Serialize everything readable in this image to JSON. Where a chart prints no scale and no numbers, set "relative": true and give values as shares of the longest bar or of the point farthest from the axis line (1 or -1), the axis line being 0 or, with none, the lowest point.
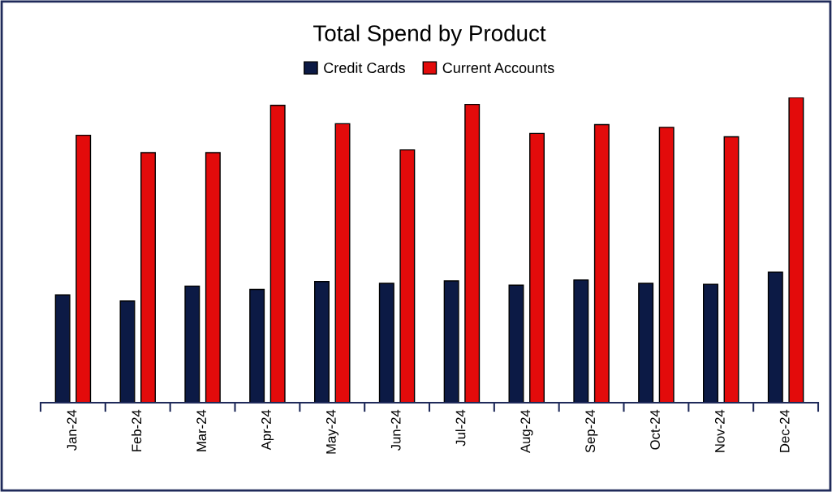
{
  "chart_data": {
    "type": "bar",
    "title": "Total Spend by Product",
    "relative": true,
    "legend": "top",
    "categories": [
      "Jan-24",
      "Feb-24",
      "Mar-24",
      "Apr-24",
      "May-24",
      "Jun-24",
      "Jul-24",
      "Aug-24",
      "Sep-24",
      "Oct-24",
      "Nov-24",
      "Dec-24"
    ],
    "series": [
      {
        "name": "Credit Cards",
        "color": "#0c1a45",
        "values": [
          0.353,
          0.333,
          0.382,
          0.371,
          0.397,
          0.391,
          0.399,
          0.385,
          0.402,
          0.391,
          0.388,
          0.428
        ]
      },
      {
        "name": "Current Accounts",
        "color": "#e30b0b",
        "values": [
          0.876,
          0.819,
          0.819,
          0.974,
          0.914,
          0.828,
          0.977,
          0.882,
          0.911,
          0.902,
          0.871,
          1
        ]
      }
    ]
  }
}
